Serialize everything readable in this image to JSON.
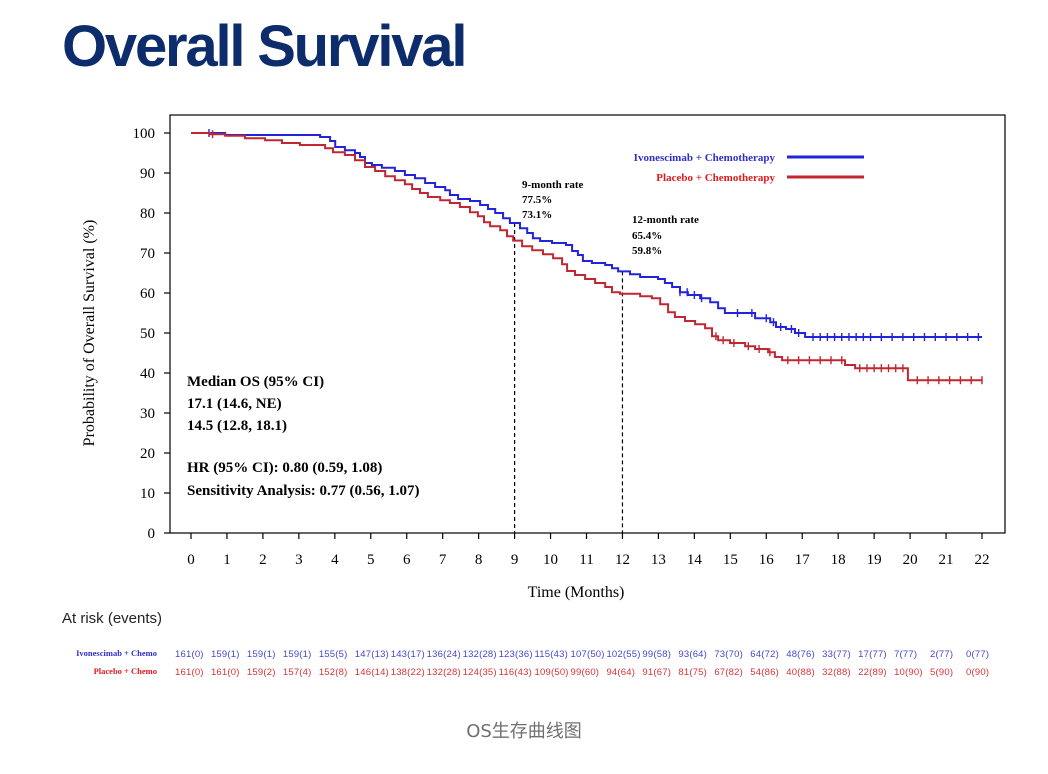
{
  "title": "Overall Survival",
  "caption": "OS生存曲线图",
  "colors": {
    "title": "#0c2c6c",
    "blue_line": "#2323dc",
    "red_line": "#c22630",
    "blue_text": "#2f2fcb",
    "red_text": "#e3191c",
    "risk_blue": "#4646cf",
    "risk_red": "#d6333a",
    "caption": "#6f6f6f"
  },
  "chart_data": {
    "type": "line",
    "xlabel": "Time (Months)",
    "ylabel": "Probability of Overall Survival (%)",
    "xlim": [
      0,
      22
    ],
    "ylim": [
      0,
      100
    ],
    "x_ticks": [
      0,
      1,
      2,
      3,
      4,
      5,
      6,
      7,
      8,
      9,
      10,
      11,
      12,
      13,
      14,
      15,
      16,
      17,
      18,
      19,
      20,
      21,
      22
    ],
    "y_ticks": [
      0,
      10,
      20,
      30,
      40,
      50,
      60,
      70,
      80,
      90,
      100
    ],
    "legend_position": "top-right",
    "series": [
      {
        "name": "Ivonescimab + Chemotherapy",
        "color": "#2323dc",
        "last_time": 22,
        "steps": [
          [
            0,
            100
          ],
          [
            0.95,
            99.5
          ],
          [
            3.59,
            99.0
          ],
          [
            3.87,
            98.0
          ],
          [
            4.01,
            96.5
          ],
          [
            4.28,
            95.7
          ],
          [
            4.56,
            95.0
          ],
          [
            4.7,
            94.0
          ],
          [
            4.84,
            92.5
          ],
          [
            5.03,
            92.0
          ],
          [
            5.31,
            91.3
          ],
          [
            5.67,
            90.5
          ],
          [
            5.95,
            89.5
          ],
          [
            6.23,
            88.7
          ],
          [
            6.51,
            87.5
          ],
          [
            6.79,
            86.5
          ],
          [
            7.07,
            85.7
          ],
          [
            7.2,
            84.5
          ],
          [
            7.43,
            83.5
          ],
          [
            7.76,
            83.0
          ],
          [
            8.04,
            82.0
          ],
          [
            8.26,
            81.0
          ],
          [
            8.46,
            80.0
          ],
          [
            8.68,
            78.7
          ],
          [
            8.87,
            77.5
          ],
          [
            9.15,
            76.2
          ],
          [
            9.35,
            75.0
          ],
          [
            9.51,
            73.7
          ],
          [
            9.71,
            73.0
          ],
          [
            10.04,
            72.5
          ],
          [
            10.43,
            72.0
          ],
          [
            10.6,
            70.5
          ],
          [
            10.76,
            69.5
          ],
          [
            10.9,
            68.0
          ],
          [
            11.15,
            67.5
          ],
          [
            11.52,
            67.0
          ],
          [
            11.71,
            66.2
          ],
          [
            11.88,
            65.4
          ],
          [
            12.21,
            64.7
          ],
          [
            12.49,
            64.0
          ],
          [
            12.99,
            63.5
          ],
          [
            13.18,
            62.5
          ],
          [
            13.38,
            61.5
          ],
          [
            13.6,
            60.2
          ],
          [
            13.82,
            59.5
          ],
          [
            14.16,
            58.7
          ],
          [
            14.44,
            57.7
          ],
          [
            14.66,
            56.2
          ],
          [
            14.85,
            55.0
          ],
          [
            15.69,
            53.7
          ],
          [
            16.11,
            52.7
          ],
          [
            16.27,
            51.5
          ],
          [
            16.55,
            51.0
          ],
          [
            16.8,
            50.0
          ],
          [
            17.08,
            49.0
          ]
        ],
        "censored": [
          0.5,
          13.6,
          13.8,
          14.0,
          14.2,
          15.2,
          15.6,
          16.0,
          16.2,
          16.4,
          16.7,
          16.9,
          17.3,
          17.5,
          17.7,
          17.9,
          18.1,
          18.3,
          18.5,
          18.7,
          18.9,
          19.2,
          19.5,
          19.8,
          20.1,
          20.4,
          20.7,
          21.0,
          21.3,
          21.6,
          21.9
        ]
      },
      {
        "name": "Placebo + Chemotherapy",
        "color": "#c22630",
        "last_time": 22,
        "steps": [
          [
            0,
            100
          ],
          [
            0.53,
            99.7
          ],
          [
            0.95,
            99.3
          ],
          [
            1.5,
            98.7
          ],
          [
            2.06,
            98.2
          ],
          [
            2.53,
            97.5
          ],
          [
            3.03,
            97.0
          ],
          [
            3.73,
            96.2
          ],
          [
            3.95,
            95.2
          ],
          [
            4.28,
            94.5
          ],
          [
            4.56,
            93.2
          ],
          [
            4.84,
            91.5
          ],
          [
            5.12,
            90.5
          ],
          [
            5.4,
            89.2
          ],
          [
            5.67,
            88.2
          ],
          [
            5.95,
            87.2
          ],
          [
            6.15,
            86.0
          ],
          [
            6.37,
            85.0
          ],
          [
            6.59,
            84.0
          ],
          [
            6.93,
            83.2
          ],
          [
            7.2,
            82.5
          ],
          [
            7.48,
            81.5
          ],
          [
            7.76,
            80.2
          ],
          [
            7.98,
            79.2
          ],
          [
            8.15,
            77.7
          ],
          [
            8.32,
            76.7
          ],
          [
            8.6,
            75.7
          ],
          [
            8.79,
            74.2
          ],
          [
            8.96,
            73.1
          ],
          [
            9.21,
            71.7
          ],
          [
            9.49,
            70.7
          ],
          [
            9.79,
            69.7
          ],
          [
            10.07,
            68.7
          ],
          [
            10.32,
            67.2
          ],
          [
            10.46,
            65.5
          ],
          [
            10.68,
            64.5
          ],
          [
            10.96,
            63.5
          ],
          [
            11.24,
            62.5
          ],
          [
            11.52,
            61.5
          ],
          [
            11.71,
            60.2
          ],
          [
            11.93,
            59.8
          ],
          [
            12.49,
            59.2
          ],
          [
            12.82,
            58.7
          ],
          [
            13.05,
            57.2
          ],
          [
            13.27,
            55.2
          ],
          [
            13.46,
            54.0
          ],
          [
            13.74,
            53.0
          ],
          [
            14.02,
            52.2
          ],
          [
            14.3,
            51.2
          ],
          [
            14.49,
            49.2
          ],
          [
            14.66,
            48.2
          ],
          [
            14.99,
            47.5
          ],
          [
            15.41,
            46.7
          ],
          [
            15.69,
            46.0
          ],
          [
            16.05,
            45.2
          ],
          [
            16.24,
            44.0
          ],
          [
            16.44,
            43.2
          ],
          [
            18.19,
            42.0
          ],
          [
            18.47,
            41.2
          ],
          [
            19.94,
            38.2
          ]
        ],
        "censored": [
          0.6,
          14.6,
          14.8,
          15.1,
          15.5,
          15.8,
          16.1,
          16.6,
          16.9,
          17.2,
          17.5,
          17.8,
          18.1,
          18.6,
          18.8,
          19.0,
          19.2,
          19.4,
          19.6,
          19.8,
          20.2,
          20.5,
          20.8,
          21.1,
          21.4,
          21.7,
          22.0
        ]
      }
    ],
    "annotations": {
      "nine_month": {
        "label": "9-month rate",
        "time": 9,
        "blue_rate": "77.5%",
        "red_rate": "73.1%"
      },
      "twelve_month": {
        "label": "12-month rate",
        "time": 12,
        "blue_rate": "65.4%",
        "red_rate": "59.8%"
      }
    },
    "median_os": {
      "heading": "Median OS (95% CI)",
      "blue": "17.1 (14.6, NE)",
      "red": "14.5 (12.8, 18.1)"
    },
    "hr": "HR (95% CI): 0.80 (0.59, 1.08)",
    "sensitivity": "Sensitivity Analysis: 0.77 (0.56, 1.07)"
  },
  "at_risk": {
    "title": "At risk (events)",
    "rows": [
      {
        "label": "Ivonescimab + Chemo",
        "values": [
          "161(0)",
          "159(1)",
          "159(1)",
          "159(1)",
          "155(5)",
          "147(13)",
          "143(17)",
          "136(24)",
          "132(28)",
          "123(36)",
          "115(43)",
          "107(50)",
          "102(55)",
          "99(58)",
          "93(64)",
          "73(70)",
          "64(72)",
          "48(76)",
          "33(77)",
          "17(77)",
          "7(77)",
          "2(77)",
          "0(77)"
        ]
      },
      {
        "label": "Placebo + Chemo",
        "values": [
          "161(0)",
          "161(0)",
          "159(2)",
          "157(4)",
          "152(8)",
          "146(14)",
          "138(22)",
          "132(28)",
          "124(35)",
          "116(43)",
          "109(50)",
          "99(60)",
          "94(64)",
          "91(67)",
          "81(75)",
          "67(82)",
          "54(86)",
          "40(88)",
          "32(88)",
          "22(89)",
          "10(90)",
          "5(90)",
          "0(90)"
        ]
      }
    ]
  }
}
